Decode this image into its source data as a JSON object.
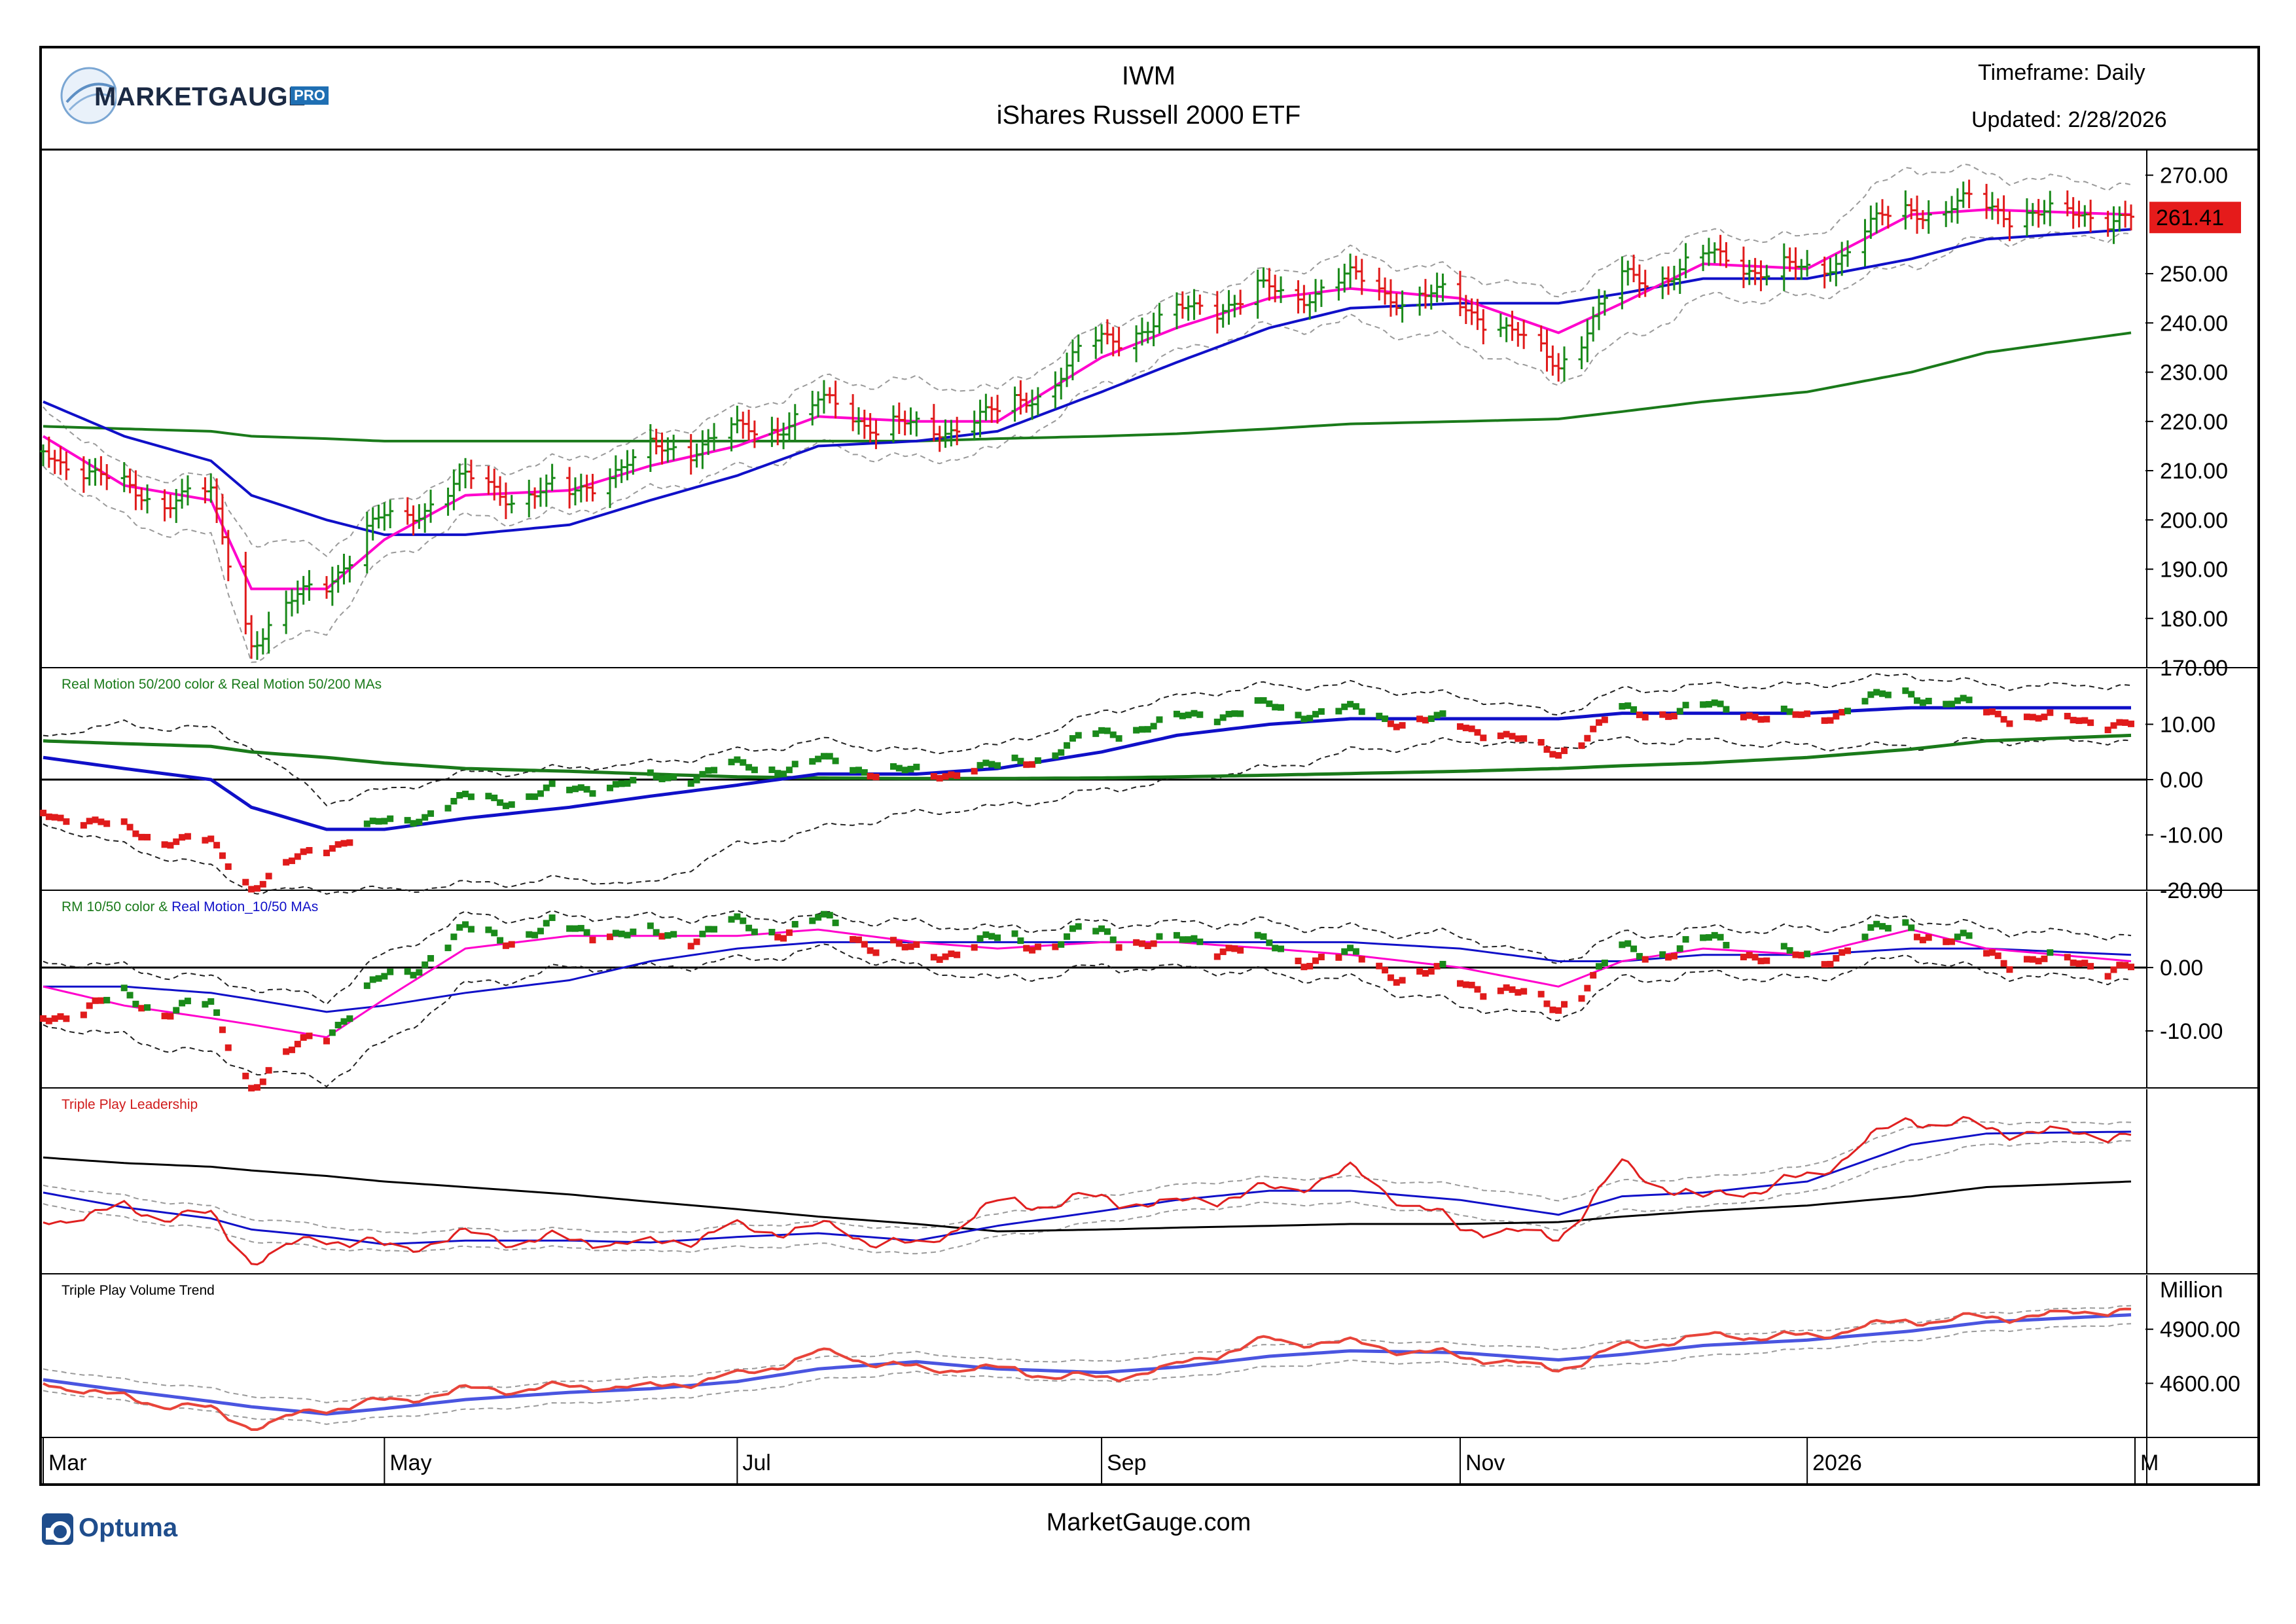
{
  "header": {
    "brand_word": "MARKETGAUGE",
    "brand_badge": "PRO",
    "symbol": "IWM",
    "name": "iShares Russell 2000 ETF",
    "timeframe": "Timeframe: Daily",
    "updated": "Updated: 2/28/2026"
  },
  "footer": {
    "site": "MarketGauge.com",
    "optuma": "Optuma"
  },
  "colors": {
    "up": "#1a8a1a",
    "down": "#e01b1b",
    "ma_fast": "#ff00cc",
    "ma_mid": "#1010c8",
    "ma_slow": "#1a7a1a",
    "band": "#9a9a9a",
    "price_tag": "#e51b1b"
  },
  "chart_data": [
    {
      "type": "ohlc",
      "pane": "price",
      "title": "",
      "ylim": [
        170,
        275
      ],
      "yticks": [
        270,
        260,
        250,
        240,
        230,
        220,
        210,
        200,
        190,
        180,
        170
      ],
      "ytick_labels": [
        "270.00",
        "",
        "250.00",
        "240.00",
        "230.00",
        "220.00",
        "210.00",
        "200.00",
        "190.00",
        "180.00",
        "170.00"
      ],
      "last_price": "261.41",
      "x_months": [
        "Mar",
        "May",
        "Jul",
        "Sep",
        "Nov",
        "2026",
        "M"
      ],
      "month_dates": [
        "2025-03-03",
        "2025-05-01",
        "2025-07-01",
        "2025-09-02",
        "2025-11-03",
        "2026-01-02",
        "2026-03-02"
      ],
      "x_dates": [
        "2025-03-03",
        "2025-03-17",
        "2025-04-01",
        "2025-04-08",
        "2025-04-21",
        "2025-05-01",
        "2025-05-15",
        "2025-06-02",
        "2025-06-16",
        "2025-07-01",
        "2025-07-15",
        "2025-08-01",
        "2025-08-15",
        "2025-09-02",
        "2025-09-15",
        "2025-10-01",
        "2025-10-15",
        "2025-11-03",
        "2025-11-20",
        "2025-12-01",
        "2025-12-15",
        "2026-01-02",
        "2026-01-20",
        "2026-02-02",
        "2026-02-27"
      ],
      "close": [
        214,
        206,
        204,
        176,
        188,
        200,
        207,
        205,
        214,
        217,
        223,
        218,
        221,
        236,
        242,
        246,
        248,
        244,
        232,
        248,
        253,
        250,
        264,
        263,
        261.41
      ],
      "ma10": [
        217,
        207,
        204,
        186,
        186,
        196,
        205,
        206,
        211,
        215,
        221,
        220,
        220,
        233,
        239,
        245,
        247,
        245,
        238,
        244,
        252,
        251,
        262,
        263,
        262
      ],
      "ma50": [
        224,
        217,
        212,
        205,
        200,
        197,
        197,
        199,
        204,
        209,
        215,
        216,
        218,
        226,
        232,
        239,
        243,
        244,
        244,
        246,
        249,
        249,
        253,
        257,
        259
      ],
      "ma200": [
        219,
        218.5,
        218,
        217,
        216.5,
        216,
        216,
        216,
        216,
        216,
        216,
        216,
        216.5,
        217,
        217.5,
        218.5,
        219.5,
        220,
        220.5,
        222,
        224,
        226,
        230,
        234,
        238
      ],
      "band_upper": [
        223,
        210,
        208,
        196,
        194,
        203,
        210,
        212,
        217,
        222,
        228,
        228,
        226,
        239,
        245,
        250,
        254,
        250,
        246,
        252,
        258,
        257,
        272,
        270,
        268
      ],
      "band_lower": [
        211,
        200,
        196,
        172,
        178,
        192,
        200,
        201,
        206,
        210,
        215,
        212,
        214,
        227,
        234,
        239,
        240,
        236,
        228,
        236,
        245,
        245,
        252,
        257,
        258
      ]
    },
    {
      "type": "dots",
      "pane": "rm50200",
      "title": "Real Motion 50/200 color & Real Motion 50/200 MAs",
      "ylim": [
        -20,
        20
      ],
      "yticks": [
        10,
        0,
        -10,
        -20
      ],
      "ytick_labels": [
        "10.00",
        "0.00",
        "-10.00",
        "-20.00"
      ],
      "x_dates": [
        "2025-03-03",
        "2025-03-17",
        "2025-04-01",
        "2025-04-08",
        "2025-04-21",
        "2025-05-01",
        "2025-05-15",
        "2025-06-02",
        "2025-06-16",
        "2025-07-01",
        "2025-07-15",
        "2025-08-01",
        "2025-08-15",
        "2025-09-02",
        "2025-09-15",
        "2025-10-01",
        "2025-10-15",
        "2025-11-03",
        "2025-11-20",
        "2025-12-01",
        "2025-12-15",
        "2026-01-02",
        "2026-01-20",
        "2026-02-02",
        "2026-02-27"
      ],
      "values": [
        -6,
        -9,
        -12,
        -19,
        -12,
        -8,
        -4,
        -2,
        0,
        2,
        3,
        1,
        2,
        8,
        11,
        13,
        12,
        10,
        5,
        12,
        13,
        11,
        16,
        12,
        10
      ],
      "ma50": [
        4,
        2,
        0,
        -5,
        -9,
        -9,
        -7,
        -5,
        -3,
        -1,
        1,
        1,
        2,
        5,
        8,
        10,
        11,
        11,
        11,
        12,
        12,
        12,
        13,
        13,
        13
      ],
      "ma200": [
        7,
        6.5,
        6,
        5,
        4,
        3,
        2,
        1.5,
        1,
        0.5,
        0.3,
        0.2,
        0.2,
        0.3,
        0.5,
        0.8,
        1.1,
        1.5,
        2,
        2.5,
        3,
        4,
        5.5,
        7,
        8
      ],
      "band_upper": [
        8,
        10,
        9,
        6,
        -4,
        -2,
        1,
        2,
        3,
        5,
        7,
        5,
        6,
        12,
        15,
        17,
        17,
        15,
        12,
        16,
        17,
        17,
        19,
        17,
        17
      ],
      "band_lower": [
        -8,
        -12,
        -16,
        -20,
        -20,
        -20,
        -19,
        -18,
        -19,
        -12,
        -9,
        -6,
        -5,
        -2,
        0,
        2,
        5,
        7,
        6,
        7,
        7,
        6,
        6,
        7,
        7
      ]
    },
    {
      "type": "dots",
      "pane": "rm1050",
      "title": "RM 10/50 color & Real Motion_10/50 MAs",
      "title_red": "RM 10/50 color & ",
      "title_blue": "Real Motion_10/50 MAs",
      "ylim": [
        -19,
        12
      ],
      "yticks": [
        0,
        -10
      ],
      "ytick_labels": [
        "0.00",
        "-10.00"
      ],
      "x_dates": [
        "2025-03-03",
        "2025-03-17",
        "2025-04-01",
        "2025-04-08",
        "2025-04-21",
        "2025-05-01",
        "2025-05-15",
        "2025-06-02",
        "2025-06-16",
        "2025-07-01",
        "2025-07-15",
        "2025-08-01",
        "2025-08-15",
        "2025-09-02",
        "2025-09-15",
        "2025-10-01",
        "2025-10-15",
        "2025-11-03",
        "2025-11-20",
        "2025-12-01",
        "2025-12-15",
        "2026-01-02",
        "2026-01-20",
        "2026-02-02",
        "2026-02-27"
      ],
      "values": [
        -8,
        -5,
        -7,
        -18,
        -10,
        -2,
        5,
        6,
        5,
        6,
        7,
        2,
        4,
        5,
        4,
        3,
        1,
        -2,
        -6,
        2,
        4,
        1,
        7,
        2,
        0
      ],
      "ma10": [
        -3,
        -6,
        -8,
        -9,
        -11,
        -5,
        3,
        5,
        5,
        5,
        6,
        4,
        3,
        4,
        4,
        3,
        2,
        0,
        -3,
        1,
        3,
        2,
        6,
        3,
        1
      ],
      "ma50": [
        -3,
        -3,
        -4,
        -5,
        -7,
        -6,
        -4,
        -2,
        1,
        3,
        4,
        4,
        4,
        4,
        4,
        4,
        4,
        3,
        1,
        1,
        2,
        2,
        3,
        3,
        2
      ],
      "band_upper": [
        1,
        0,
        -2,
        -3,
        -5,
        2,
        8,
        8,
        8,
        8,
        8,
        7,
        6,
        7,
        7,
        7,
        6,
        5,
        1,
        5,
        6,
        6,
        8,
        6,
        5
      ],
      "band_lower": [
        -9,
        -11,
        -14,
        -16,
        -18,
        -12,
        -3,
        0,
        0,
        1,
        3,
        0,
        -2,
        0,
        0,
        -1,
        -2,
        -6,
        -8,
        -2,
        -1,
        -2,
        2,
        -1,
        -2
      ]
    },
    {
      "type": "line",
      "pane": "tpl",
      "title": "Triple Play Leadership",
      "ylim": [
        0,
        100
      ],
      "x_dates": [
        "2025-03-03",
        "2025-03-17",
        "2025-04-01",
        "2025-04-08",
        "2025-04-21",
        "2025-05-01",
        "2025-05-15",
        "2025-06-02",
        "2025-06-16",
        "2025-07-01",
        "2025-07-15",
        "2025-08-01",
        "2025-08-15",
        "2025-09-02",
        "2025-09-15",
        "2025-10-01",
        "2025-10-15",
        "2025-11-03",
        "2025-11-20",
        "2025-12-01",
        "2025-12-15",
        "2026-01-02",
        "2026-01-20",
        "2026-02-02",
        "2026-02-27"
      ],
      "values": [
        28,
        35,
        30,
        8,
        20,
        14,
        20,
        18,
        16,
        24,
        25,
        14,
        38,
        40,
        38,
        45,
        55,
        25,
        20,
        58,
        40,
        52,
        85,
        78,
        75
      ],
      "ma_fast": [
        44,
        36,
        30,
        24,
        20,
        16,
        18,
        18,
        17,
        20,
        22,
        18,
        26,
        34,
        40,
        45,
        45,
        40,
        32,
        42,
        44,
        50,
        70,
        76,
        77
      ],
      "ma_slow": [
        63,
        60,
        58,
        56,
        53,
        50,
        47,
        43,
        39,
        35,
        31,
        27,
        23,
        24,
        25,
        26,
        27,
        27,
        28,
        31,
        34,
        37,
        42,
        47,
        50
      ],
      "band_upper": [
        48,
        42,
        36,
        30,
        26,
        22,
        24,
        24,
        22,
        26,
        28,
        24,
        32,
        42,
        48,
        52,
        52,
        48,
        40,
        50,
        52,
        58,
        80,
        82,
        82
      ],
      "band_lower": [
        38,
        30,
        24,
        18,
        14,
        12,
        14,
        14,
        12,
        14,
        16,
        10,
        20,
        28,
        34,
        38,
        38,
        32,
        24,
        34,
        36,
        44,
        62,
        70,
        72
      ]
    },
    {
      "type": "line",
      "pane": "tpvt",
      "title": "Triple Play Volume Trend",
      "unit": "Million",
      "ylim": [
        4300,
        5200
      ],
      "yticks": [
        4900,
        4600
      ],
      "ytick_labels": [
        "4900.00",
        "4600.00"
      ],
      "x_dates": [
        "2025-03-03",
        "2025-03-17",
        "2025-04-01",
        "2025-04-08",
        "2025-04-21",
        "2025-05-01",
        "2025-05-15",
        "2025-06-02",
        "2025-06-16",
        "2025-07-01",
        "2025-07-15",
        "2025-08-01",
        "2025-08-15",
        "2025-09-02",
        "2025-09-15",
        "2025-10-01",
        "2025-10-15",
        "2025-11-03",
        "2025-11-20",
        "2025-12-01",
        "2025-12-15",
        "2026-01-02",
        "2026-01-20",
        "2026-02-02",
        "2026-02-27"
      ],
      "values": [
        4600,
        4520,
        4450,
        4360,
        4460,
        4500,
        4560,
        4580,
        4580,
        4640,
        4770,
        4680,
        4680,
        4620,
        4700,
        4840,
        4820,
        4750,
        4680,
        4800,
        4860,
        4860,
        4950,
        4960,
        5010
      ],
      "ma": [
        4620,
        4560,
        4500,
        4470,
        4430,
        4460,
        4510,
        4550,
        4570,
        4610,
        4680,
        4720,
        4680,
        4660,
        4690,
        4750,
        4780,
        4770,
        4730,
        4760,
        4810,
        4840,
        4890,
        4940,
        4980
      ],
      "band_upper": [
        4680,
        4620,
        4570,
        4530,
        4500,
        4520,
        4570,
        4610,
        4630,
        4670,
        4740,
        4770,
        4730,
        4720,
        4760,
        4810,
        4840,
        4820,
        4790,
        4830,
        4870,
        4890,
        4940,
        4990,
        5030
      ],
      "band_lower": [
        4560,
        4500,
        4440,
        4410,
        4380,
        4410,
        4450,
        4490,
        4510,
        4550,
        4620,
        4660,
        4630,
        4610,
        4630,
        4690,
        4720,
        4710,
        4680,
        4700,
        4750,
        4790,
        4840,
        4890,
        4930
      ]
    }
  ]
}
